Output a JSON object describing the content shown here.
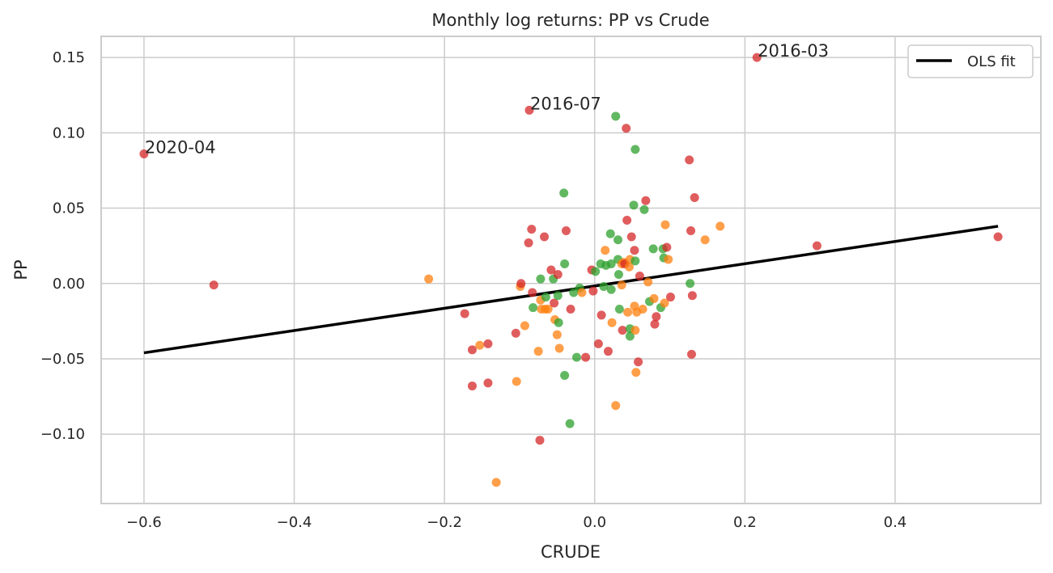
{
  "chart_data": {
    "type": "scatter",
    "title": "Monthly log returns: PP vs Crude",
    "xlabel": "CRUDE",
    "ylabel": "PP",
    "xlim": [
      -0.657,
      0.594
    ],
    "ylim": [
      -0.146,
      0.164
    ],
    "xticks": [
      -0.6,
      -0.4,
      -0.2,
      0.0,
      0.2,
      0.4
    ],
    "xtick_labels": [
      "−0.6",
      "−0.4",
      "−0.2",
      "0.0",
      "0.2",
      "0.4"
    ],
    "yticks": [
      -0.1,
      -0.05,
      0.0,
      0.05,
      0.1,
      0.15
    ],
    "ytick_labels": [
      "−0.10",
      "−0.05",
      "0.00",
      "0.05",
      "0.10",
      "0.15"
    ],
    "grid": true,
    "legend": {
      "placement": "upper right",
      "entries": [
        "OLS fit"
      ]
    },
    "colors": {
      "red": "#d62728",
      "orange": "#ff7f0e",
      "green": "#2ca02c",
      "fit": "#000000",
      "grid": "#cccccc",
      "spine": "#cccccc"
    },
    "points": [
      {
        "x": -0.6,
        "y": 0.086,
        "c": "red"
      },
      {
        "x": -0.507,
        "y": -0.001,
        "c": "red"
      },
      {
        "x": -0.221,
        "y": 0.003,
        "c": "orange"
      },
      {
        "x": -0.173,
        "y": -0.02,
        "c": "red"
      },
      {
        "x": -0.163,
        "y": -0.044,
        "c": "red"
      },
      {
        "x": -0.163,
        "y": -0.068,
        "c": "red"
      },
      {
        "x": -0.153,
        "y": -0.041,
        "c": "orange"
      },
      {
        "x": -0.142,
        "y": -0.04,
        "c": "red"
      },
      {
        "x": -0.142,
        "y": -0.066,
        "c": "red"
      },
      {
        "x": -0.131,
        "y": -0.132,
        "c": "orange"
      },
      {
        "x": -0.105,
        "y": -0.033,
        "c": "red"
      },
      {
        "x": -0.104,
        "y": -0.065,
        "c": "orange"
      },
      {
        "x": -0.099,
        "y": -0.002,
        "c": "orange"
      },
      {
        "x": -0.098,
        "y": 0.0,
        "c": "red"
      },
      {
        "x": -0.093,
        "y": -0.028,
        "c": "orange"
      },
      {
        "x": -0.088,
        "y": 0.027,
        "c": "red"
      },
      {
        "x": -0.087,
        "y": 0.115,
        "c": "red"
      },
      {
        "x": -0.084,
        "y": 0.036,
        "c": "red"
      },
      {
        "x": -0.083,
        "y": -0.006,
        "c": "red"
      },
      {
        "x": -0.082,
        "y": -0.016,
        "c": "green"
      },
      {
        "x": -0.075,
        "y": -0.045,
        "c": "orange"
      },
      {
        "x": -0.073,
        "y": -0.104,
        "c": "red"
      },
      {
        "x": -0.072,
        "y": 0.003,
        "c": "green"
      },
      {
        "x": -0.072,
        "y": -0.011,
        "c": "orange"
      },
      {
        "x": -0.071,
        "y": -0.017,
        "c": "orange"
      },
      {
        "x": -0.067,
        "y": 0.031,
        "c": "red"
      },
      {
        "x": -0.066,
        "y": -0.017,
        "c": "orange"
      },
      {
        "x": -0.065,
        "y": -0.009,
        "c": "green"
      },
      {
        "x": -0.062,
        "y": -0.017,
        "c": "orange"
      },
      {
        "x": -0.058,
        "y": 0.009,
        "c": "red"
      },
      {
        "x": -0.055,
        "y": 0.003,
        "c": "green"
      },
      {
        "x": -0.054,
        "y": -0.013,
        "c": "red"
      },
      {
        "x": -0.053,
        "y": -0.024,
        "c": "orange"
      },
      {
        "x": -0.05,
        "y": -0.034,
        "c": "orange"
      },
      {
        "x": -0.049,
        "y": 0.006,
        "c": "red"
      },
      {
        "x": -0.049,
        "y": -0.008,
        "c": "green"
      },
      {
        "x": -0.048,
        "y": -0.026,
        "c": "green"
      },
      {
        "x": -0.047,
        "y": -0.043,
        "c": "orange"
      },
      {
        "x": -0.041,
        "y": 0.06,
        "c": "green"
      },
      {
        "x": -0.04,
        "y": 0.013,
        "c": "green"
      },
      {
        "x": -0.04,
        "y": -0.061,
        "c": "green"
      },
      {
        "x": -0.038,
        "y": 0.035,
        "c": "red"
      },
      {
        "x": -0.033,
        "y": -0.093,
        "c": "green"
      },
      {
        "x": -0.032,
        "y": -0.017,
        "c": "red"
      },
      {
        "x": -0.028,
        "y": -0.006,
        "c": "green"
      },
      {
        "x": -0.024,
        "y": -0.049,
        "c": "green"
      },
      {
        "x": -0.02,
        "y": -0.003,
        "c": "green"
      },
      {
        "x": -0.017,
        "y": -0.006,
        "c": "orange"
      },
      {
        "x": -0.012,
        "y": -0.049,
        "c": "red"
      },
      {
        "x": -0.004,
        "y": 0.009,
        "c": "red"
      },
      {
        "x": -0.002,
        "y": -0.005,
        "c": "red"
      },
      {
        "x": 0.001,
        "y": 0.008,
        "c": "green"
      },
      {
        "x": 0.005,
        "y": -0.04,
        "c": "red"
      },
      {
        "x": 0.008,
        "y": 0.013,
        "c": "green"
      },
      {
        "x": 0.009,
        "y": -0.021,
        "c": "red"
      },
      {
        "x": 0.012,
        "y": -0.002,
        "c": "green"
      },
      {
        "x": 0.014,
        "y": 0.022,
        "c": "orange"
      },
      {
        "x": 0.015,
        "y": 0.012,
        "c": "green"
      },
      {
        "x": 0.018,
        "y": -0.045,
        "c": "red"
      },
      {
        "x": 0.021,
        "y": 0.033,
        "c": "green"
      },
      {
        "x": 0.022,
        "y": 0.013,
        "c": "green"
      },
      {
        "x": 0.022,
        "y": -0.004,
        "c": "green"
      },
      {
        "x": 0.023,
        "y": -0.026,
        "c": "orange"
      },
      {
        "x": 0.028,
        "y": 0.111,
        "c": "green"
      },
      {
        "x": 0.028,
        "y": -0.081,
        "c": "orange"
      },
      {
        "x": 0.031,
        "y": 0.029,
        "c": "green"
      },
      {
        "x": 0.031,
        "y": 0.016,
        "c": "green"
      },
      {
        "x": 0.032,
        "y": 0.006,
        "c": "green"
      },
      {
        "x": 0.033,
        "y": -0.017,
        "c": "green"
      },
      {
        "x": 0.036,
        "y": 0.013,
        "c": "orange"
      },
      {
        "x": 0.036,
        "y": -0.001,
        "c": "orange"
      },
      {
        "x": 0.037,
        "y": -0.031,
        "c": "red"
      },
      {
        "x": 0.039,
        "y": 0.014,
        "c": "orange"
      },
      {
        "x": 0.04,
        "y": 0.013,
        "c": "red"
      },
      {
        "x": 0.042,
        "y": 0.103,
        "c": "red"
      },
      {
        "x": 0.043,
        "y": 0.042,
        "c": "red"
      },
      {
        "x": 0.044,
        "y": -0.019,
        "c": "orange"
      },
      {
        "x": 0.046,
        "y": 0.011,
        "c": "orange"
      },
      {
        "x": 0.047,
        "y": 0.016,
        "c": "orange"
      },
      {
        "x": 0.047,
        "y": -0.03,
        "c": "green"
      },
      {
        "x": 0.047,
        "y": -0.035,
        "c": "green"
      },
      {
        "x": 0.049,
        "y": 0.031,
        "c": "red"
      },
      {
        "x": 0.052,
        "y": 0.052,
        "c": "green"
      },
      {
        "x": 0.053,
        "y": 0.022,
        "c": "red"
      },
      {
        "x": 0.053,
        "y": -0.015,
        "c": "orange"
      },
      {
        "x": 0.054,
        "y": 0.089,
        "c": "green"
      },
      {
        "x": 0.054,
        "y": 0.015,
        "c": "green"
      },
      {
        "x": 0.054,
        "y": -0.031,
        "c": "orange"
      },
      {
        "x": 0.055,
        "y": -0.059,
        "c": "orange"
      },
      {
        "x": 0.056,
        "y": -0.019,
        "c": "orange"
      },
      {
        "x": 0.058,
        "y": -0.052,
        "c": "red"
      },
      {
        "x": 0.06,
        "y": 0.005,
        "c": "red"
      },
      {
        "x": 0.064,
        "y": -0.017,
        "c": "orange"
      },
      {
        "x": 0.066,
        "y": 0.049,
        "c": "green"
      },
      {
        "x": 0.068,
        "y": 0.055,
        "c": "red"
      },
      {
        "x": 0.071,
        "y": 0.001,
        "c": "orange"
      },
      {
        "x": 0.073,
        "y": -0.012,
        "c": "green"
      },
      {
        "x": 0.078,
        "y": 0.023,
        "c": "green"
      },
      {
        "x": 0.079,
        "y": -0.01,
        "c": "orange"
      },
      {
        "x": 0.08,
        "y": -0.027,
        "c": "red"
      },
      {
        "x": 0.082,
        "y": -0.022,
        "c": "red"
      },
      {
        "x": 0.088,
        "y": -0.016,
        "c": "green"
      },
      {
        "x": 0.091,
        "y": 0.023,
        "c": "green"
      },
      {
        "x": 0.092,
        "y": 0.017,
        "c": "green"
      },
      {
        "x": 0.093,
        "y": -0.013,
        "c": "orange"
      },
      {
        "x": 0.094,
        "y": 0.039,
        "c": "orange"
      },
      {
        "x": 0.096,
        "y": 0.024,
        "c": "red"
      },
      {
        "x": 0.098,
        "y": 0.016,
        "c": "orange"
      },
      {
        "x": 0.101,
        "y": -0.009,
        "c": "red"
      },
      {
        "x": 0.126,
        "y": 0.082,
        "c": "red"
      },
      {
        "x": 0.127,
        "y": 0.0,
        "c": "green"
      },
      {
        "x": 0.128,
        "y": 0.035,
        "c": "red"
      },
      {
        "x": 0.129,
        "y": -0.047,
        "c": "red"
      },
      {
        "x": 0.13,
        "y": -0.008,
        "c": "red"
      },
      {
        "x": 0.133,
        "y": 0.057,
        "c": "red"
      },
      {
        "x": 0.147,
        "y": 0.029,
        "c": "orange"
      },
      {
        "x": 0.167,
        "y": 0.038,
        "c": "orange"
      },
      {
        "x": 0.216,
        "y": 0.15,
        "c": "red"
      },
      {
        "x": 0.296,
        "y": 0.025,
        "c": "red"
      },
      {
        "x": 0.537,
        "y": 0.031,
        "c": "red"
      }
    ],
    "annotations": [
      {
        "text": "2020-04",
        "x": -0.6,
        "y": 0.086
      },
      {
        "text": "2016-07",
        "x": -0.087,
        "y": 0.115
      },
      {
        "text": "2016-03",
        "x": 0.216,
        "y": 0.15
      }
    ],
    "fit_line": {
      "name": "OLS fit",
      "x": [
        -0.6,
        0.537
      ],
      "y": [
        -0.046,
        0.038
      ]
    }
  }
}
